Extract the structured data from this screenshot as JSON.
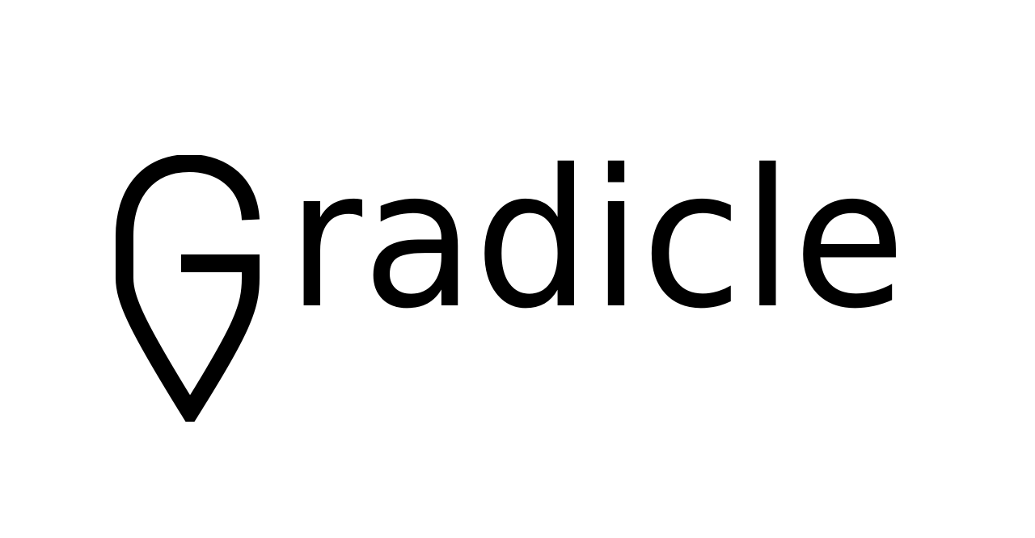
{
  "logo": {
    "wordmark_text": "radicle",
    "mark_icon": "location-pin-g-icon",
    "ink_color": "#000000",
    "background_color": "#ffffff"
  }
}
